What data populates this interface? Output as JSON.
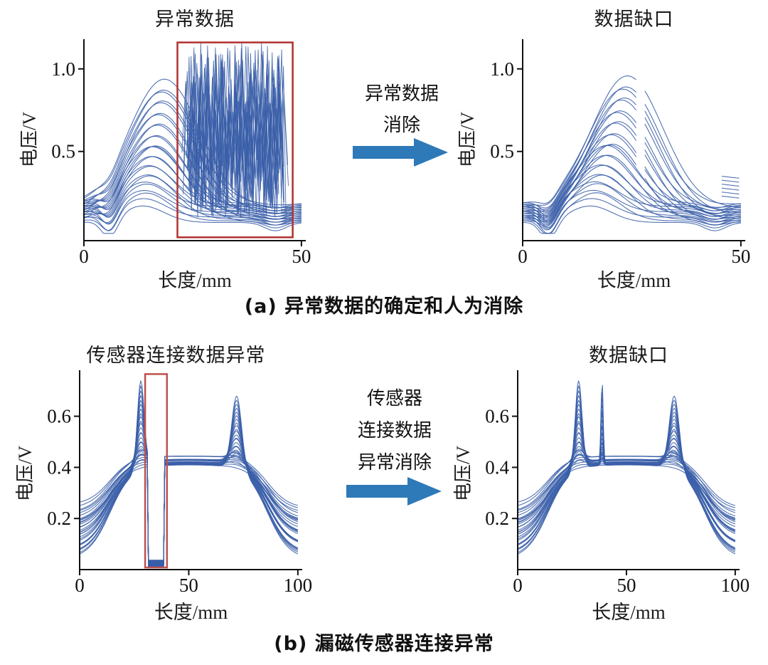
{
  "figure": {
    "captions": {
      "a": "(a) 异常数据的确定和人为消除",
      "b": "(b) 漏磁传感器连接异常"
    }
  },
  "arrows": {
    "a": {
      "lines": [
        "异常数据",
        "消除"
      ]
    },
    "b": {
      "lines": [
        "传感器",
        "连接数据",
        "异常消除"
      ]
    }
  },
  "chart_data": [
    {
      "id": "panel-a-left",
      "type": "line",
      "title": "异常数据",
      "xlabel": "长度/mm",
      "ylabel": "电压/V",
      "xlim": [
        0,
        51
      ],
      "ylim": [
        -0.04,
        1.18
      ],
      "xticks": [
        0,
        50
      ],
      "yticks": [
        0.5,
        1.0
      ],
      "curve_color": "#3a5fa8",
      "family": "bell",
      "n_curves": 26,
      "amp_min": 0.1,
      "amp_max": 0.78,
      "peak_x_min": 13.5,
      "peak_x_max": 18.5,
      "width_min": 7,
      "width_max": 11.5,
      "base_min": 0.07,
      "base_max": 0.19,
      "dip_x": 6,
      "noise": {
        "x_start": 22.5,
        "x_end": 46.5,
        "y_min": 0.1,
        "y_max": 1.16,
        "n_traces": 14
      },
      "highlight_box": {
        "x0": 21.5,
        "x1": 48,
        "y0": -0.02,
        "y1": 1.16,
        "color": "#b03030"
      },
      "note": "约26条漏磁电压曲线, 峰值0.1~0.85V, 22~47mm区间被高频异常数据覆盖(红框标出)"
    },
    {
      "id": "panel-a-right",
      "type": "line",
      "title": "数据缺口",
      "xlabel": "长度/mm",
      "ylabel": "电压/V",
      "xlim": [
        0,
        51
      ],
      "ylim": [
        -0.04,
        1.18
      ],
      "xticks": [
        0,
        50
      ],
      "yticks": [
        0.5,
        1.0
      ],
      "curve_color": "#3a5fa8",
      "family": "bell",
      "n_curves": 26,
      "amp_min": 0.1,
      "amp_max": 0.8,
      "peak_x_min": 15.5,
      "peak_x_max": 24,
      "width_min": 7,
      "width_max": 11.5,
      "base_min": 0.07,
      "base_max": 0.19,
      "dip_x": 6,
      "gap": [
        26.2,
        27.8
      ],
      "fragments": {
        "x0": 45.6,
        "x1": 49.6,
        "y_base": 0.23,
        "dy": 0.024,
        "n": 6
      },
      "note": "异常数据消除后曲线族, 峰值约0.85V, 26~28mm及45~50mm处留有数据缺口"
    },
    {
      "id": "panel-b-left",
      "type": "line",
      "title": "传感器连接数据异常",
      "xlabel": "长度/mm",
      "ylabel": "电压/V",
      "xlim": [
        0,
        102
      ],
      "ylim": [
        0,
        0.78
      ],
      "xticks": [
        0,
        50,
        100
      ],
      "yticks": [
        0.2,
        0.4,
        0.6
      ],
      "curve_color": "#3a5fa8",
      "family": "double_peak",
      "n_curves": 30,
      "edge_min": 0.04,
      "edge_max": 0.3,
      "plateau": 0.44,
      "p1_x": 28,
      "p1_max": 0.76,
      "p2_x": 72,
      "p2_max": 0.7,
      "drop": [
        31.2,
        38.8
      ],
      "highlight_box": {
        "x0": 30,
        "x1": 40,
        "y0": 0.008,
        "y1": 0.765,
        "color": "#c0504d"
      },
      "note": "双峰漏磁曲线族(峰约0.76V/0.70V, 平台约0.44V), 31~39mm处电压跌落至0(红框标出)"
    },
    {
      "id": "panel-b-right",
      "type": "line",
      "title": "数据缺口",
      "xlabel": "长度/mm",
      "ylabel": "电压/V",
      "xlim": [
        0,
        102
      ],
      "ylim": [
        0,
        0.78
      ],
      "xticks": [
        0,
        50,
        100
      ],
      "yticks": [
        0.2,
        0.4,
        0.6
      ],
      "curve_color": "#3a5fa8",
      "family": "double_peak",
      "n_curves": 30,
      "edge_min": 0.04,
      "edge_max": 0.3,
      "plateau": 0.44,
      "p1_x": 28,
      "p1_max": 0.76,
      "p2_x": 72,
      "p2_max": 0.7,
      "spike": {
        "x": 38.8,
        "h": 0.34
      },
      "note": "连接异常消除后曲线族, 约39mm处残留窄尖峰"
    }
  ]
}
